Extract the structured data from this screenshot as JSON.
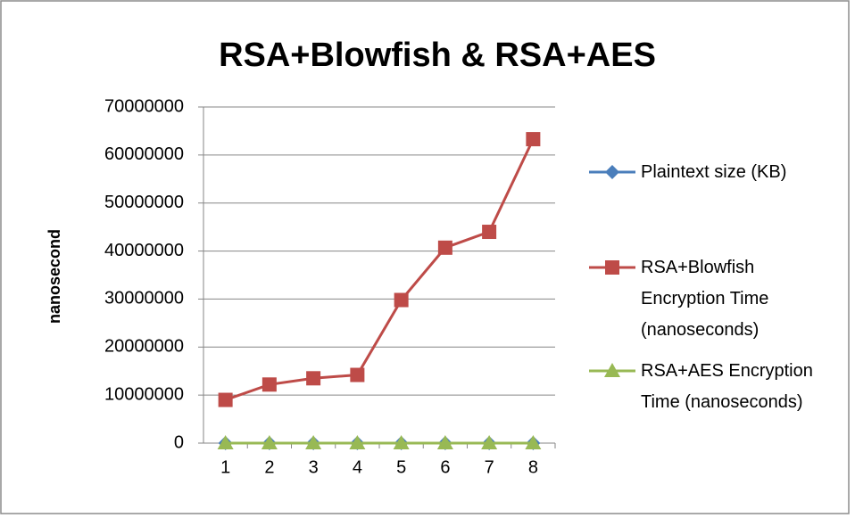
{
  "chart_data": {
    "type": "line",
    "title": "RSA+Blowfish  & RSA+AES",
    "y_label": "nanosecond",
    "categories": [
      "1",
      "2",
      "3",
      "4",
      "5",
      "6",
      "7",
      "8"
    ],
    "series": [
      {
        "name": "Plaintext size (KB)",
        "color": "#4a7ebb",
        "marker": "diamond",
        "values": [
          0,
          0,
          0,
          0,
          0,
          0,
          0,
          0
        ]
      },
      {
        "name": "RSA+Blowfish Encryption Time (nanoseconds)",
        "color": "#be4b48",
        "marker": "square",
        "values": [
          9000000,
          12200000,
          13500000,
          14200000,
          29800000,
          40700000,
          44000000,
          63300000
        ]
      },
      {
        "name": "RSA+AES Encryption Time (nanoseconds)",
        "color": "#98b954",
        "marker": "triangle",
        "values": [
          0,
          0,
          0,
          0,
          0,
          0,
          0,
          0
        ]
      }
    ],
    "ylim": [
      0,
      70000000
    ],
    "yticks": [
      0,
      10000000,
      20000000,
      30000000,
      40000000,
      50000000,
      60000000,
      70000000
    ],
    "grid": true,
    "legend": "right"
  }
}
